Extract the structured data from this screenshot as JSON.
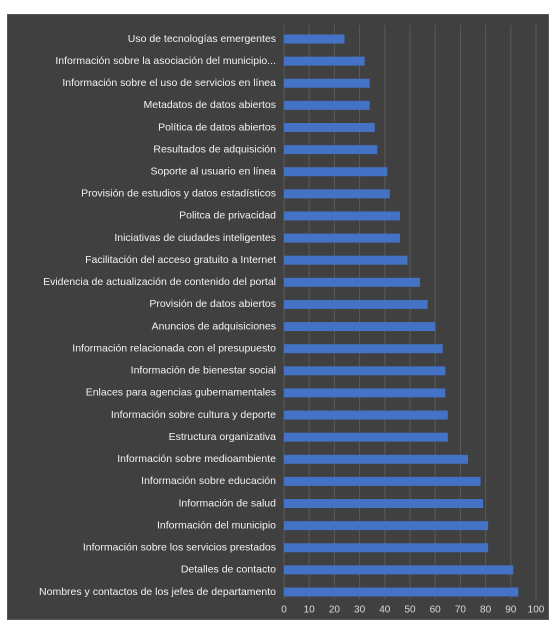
{
  "chart_data": {
    "type": "bar",
    "orientation": "horizontal",
    "categories": [
      "Uso de tecnologías emergentes",
      "Información sobre la asociación del municipio...",
      "Información sobre el uso de servicios en línea",
      "Metadatos de datos abiertos",
      "Política de datos abiertos",
      "Resultados de adquisición",
      "Soporte al usuario en línea",
      "Provisión de estudios y datos estadísticos",
      "Politca de privacidad",
      "Iniciativas de ciudades inteligentes",
      "Facilitación del acceso gratuito a Internet",
      "Evidencia de actualización de contenido del portal",
      "Provisión de datos abiertos",
      "Anuncios de adquisiciones",
      "Información relacionada con el presupuesto",
      "Información de bienestar social",
      "Enlaces para agencias gubernamentales",
      "Información sobre cultura y deporte",
      "Estructura organizativa",
      "Información sobre medioambiente",
      "Información sobre educación",
      "Información de salud",
      "Información del municipio",
      "Información sobre los servicios prestados",
      "Detalles de contacto",
      "Nombres y contactos de los jefes de departamento"
    ],
    "values": [
      24,
      32,
      34,
      34,
      36,
      37,
      41,
      42,
      46,
      46,
      49,
      54,
      57,
      60,
      63,
      64,
      64,
      65,
      65,
      73,
      78,
      79,
      81,
      81,
      91,
      93
    ],
    "xlim": [
      0,
      100
    ],
    "xticks": [
      "0",
      "10",
      "20",
      "30",
      "40",
      "50",
      "60",
      "70",
      "80",
      "90",
      "100"
    ],
    "grid": true,
    "bar_color": "#4472c4",
    "background_color": "#404040",
    "legend": "none"
  }
}
